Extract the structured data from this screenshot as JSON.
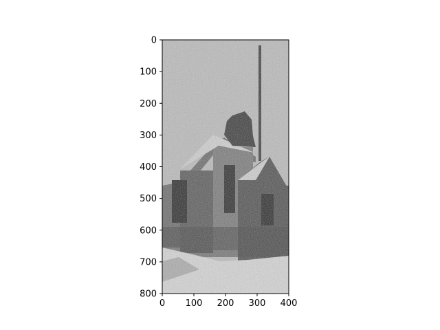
{
  "figure": {
    "image_subject": "noisy black-and-white photo of an old wooden church building with a tall spire",
    "x_ticks": [
      "0",
      "100",
      "200",
      "300",
      "400"
    ],
    "y_ticks": [
      "0",
      "100",
      "200",
      "300",
      "400",
      "500",
      "600",
      "700",
      "800"
    ],
    "x_range": [
      0,
      400
    ],
    "y_range": [
      0,
      800
    ],
    "y_inverted": true
  },
  "colors": {
    "sky": "#b9b9b9",
    "wall_dark": "#3f3f3f",
    "wall_mid": "#6f6f6f",
    "snow": "#d9d9d9"
  }
}
